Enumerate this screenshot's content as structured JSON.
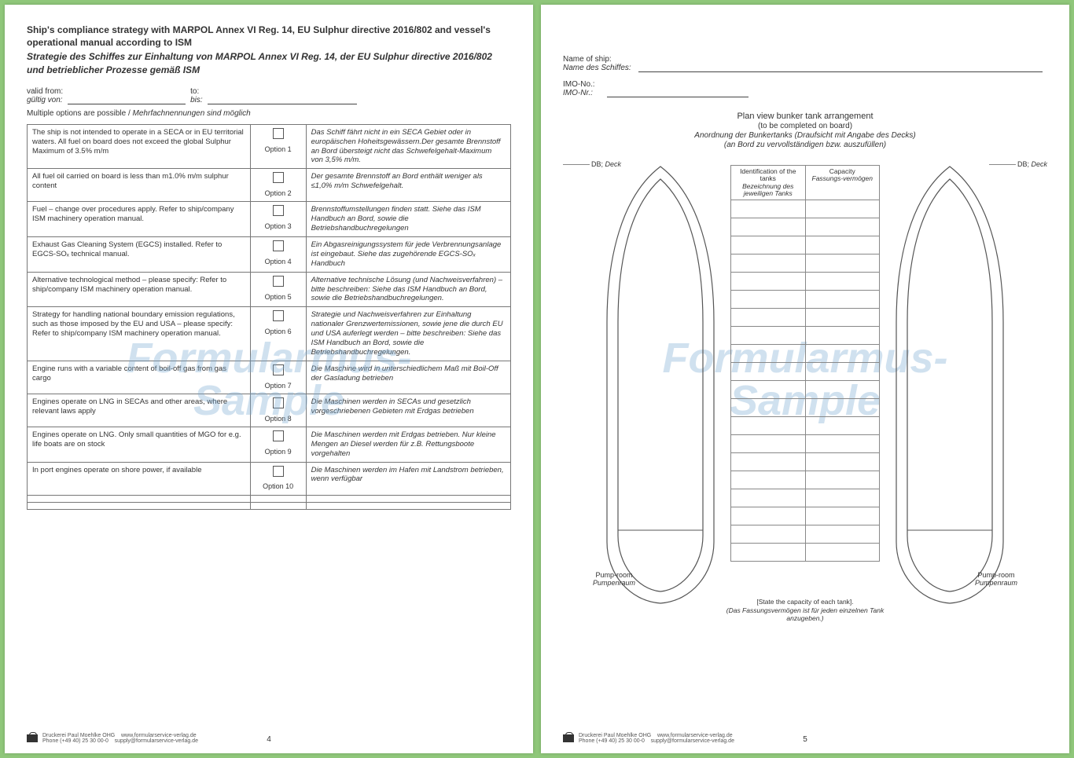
{
  "watermark": {
    "line1": "Formularmus-",
    "line2": "Sample"
  },
  "page_left": {
    "title_en": "Ship's compliance strategy with MARPOL Annex VI Reg. 14, EU Sulphur directive 2016/802 and vessel's operational manual according to ISM",
    "title_de": "Strategie des Schiffes zur Einhaltung von MARPOL Annex VI Reg. 14, der EU Sulphur directive 2016/802 und betrieblicher Prozesse gemäß ISM",
    "valid_from_en": "valid from:",
    "valid_from_de": "gültig von:",
    "to_en": "to:",
    "to_de": "bis:",
    "note_en": "Multiple options are possible",
    "note_sep": " / ",
    "note_de": "Mehrfachnennungen sind möglich",
    "options": [
      {
        "en": "The ship is not intended to operate in a SECA or in EU territorial waters. All fuel on board does not exceed the global Sulphur Maximum of 3.5% m/m",
        "label": "Option 1",
        "de": "Das Schiff fährt nicht in ein SECA Gebiet oder in europäischen Hoheitsgewässern.Der gesamte Brennstoff an Bord übersteigt nicht das Schwefelgehalt-Maximum von 3,5% m/m."
      },
      {
        "en": "All fuel oil carried on board is less than m1.0% m/m sulphur content",
        "label": "Option 2",
        "de": "Der gesamte Brennstoff an Bord enthält weniger als ≤1,0% m/m Schwefelgehalt."
      },
      {
        "en": "Fuel – change over procedures apply. Refer to ship/company ISM machinery operation manual.",
        "label": "Option 3",
        "de": "Brennstoffumstellungen finden statt. Siehe das ISM Handbuch an Bord, sowie die Betriebshandbuchregelungen"
      },
      {
        "en": "Exhaust Gas Cleaning System (EGCS) installed. Refer to EGCS-SOₓ technical manual.",
        "label": "Option 4",
        "de": "Ein Abgasreinigungssystem für jede Verbrennungsanlage ist eingebaut. Siehe das zugehörende EGCS-SOₓ Handbuch"
      },
      {
        "en": "Alternative technological method – please specify: Refer to ship/company ISM machinery operation manual.",
        "label": "Option 5",
        "de": "Alternative technische Lösung (und Nachweisverfahren) – bitte beschreiben: Siehe das ISM Handbuch an Bord, sowie die Betriebshandbuchregelungen."
      },
      {
        "en": "Strategy for handling national boundary emission regulations, such as those imposed by the EU and USA – please specify: Refer to ship/company ISM machinery operation manual.",
        "label": "Option 6",
        "de": "Strategie und Nachweisverfahren zur Einhaltung nationaler Grenzwertemissionen, sowie jene die durch EU und USA auferlegt werden – bitte beschreiben: Siehe das ISM Handbuch an Bord, sowie die Betriebshandbuchregelungen."
      },
      {
        "en": "Engine runs with a variable content of boil-off gas from gas cargo",
        "label": "Option 7",
        "de": "Die Maschine wird in unterschiedlichem Maß mit Boil-Off der Gasladung betrieben"
      },
      {
        "en": "Engines operate on LNG in SECAs and other areas, where relevant laws apply",
        "label": "Option 8",
        "de": "Die Maschinen werden in SECAs und gesetzlich vorgeschriebenen Gebieten mit Erdgas betrieben"
      },
      {
        "en": "Engines operate on LNG. Only small quantities of MGO for e.g. life boats are on stock",
        "label": "Option 9",
        "de": "Die Maschinen werden mit Erdgas betrieben. Nur kleine Mengen an Diesel werden für z.B. Rettungsboote vorgehalten"
      },
      {
        "en": "In port engines operate on shore power, if available",
        "label": "Option 10",
        "de": "Die Maschinen werden im Hafen mit Landstrom betrieben, wenn verfügbar"
      },
      {
        "en": "",
        "label": "",
        "de": ""
      },
      {
        "en": "",
        "label": "",
        "de": ""
      }
    ],
    "footer": {
      "publisher": "Druckerei Paul Moehlke OHG",
      "phone": "Phone  (+49 40) 25 30 00-0",
      "web": "www.formularservice-verlag.de",
      "email": "supply@formularservice-verlag.de"
    },
    "page_num": "4"
  },
  "page_right": {
    "ship_en": "Name of ship:",
    "ship_de": "Name des Schiffes:",
    "imo_en": "IMO-No.:",
    "imo_de": "IMO-Nr.:",
    "h1_en": "Plan view bunker tank arrangement",
    "h1_sub": "(to be completed on board)",
    "h1_de": "Anordnung der Bunkertanks (Draufsicht mit Angabe des Decks)",
    "h1_de_sub": "(an Bord zu vervollständigen bzw. auszufüllen)",
    "db_en": "DB;",
    "db_de": "Deck",
    "col1_en": "Identification of the tanks",
    "col1_de": "Bezeichnung des jeweiligen Tanks",
    "col2_en": "Capacity",
    "col2_de": "Fassungs-vermögen",
    "tank_rows": 20,
    "pump_en": "Pump-room",
    "pump_de": "Pumpenraum",
    "tnote_en": "[State the capacity of each tank].",
    "tnote_de": "(Das Fassungsvermögen ist für jeden einzelnen Tank anzugeben.)",
    "footer": {
      "publisher": "Druckerei Paul Moehlke OHG",
      "phone": "Phone  (+49 40) 25 30 00-0",
      "web": "www.formularservice-verlag.de",
      "email": "supply@formularservice-verlag.de"
    },
    "page_num": "5"
  },
  "colors": {
    "bg": "#8fc77a",
    "paper": "#ffffff",
    "line": "#777",
    "wm": "rgba(120,170,210,.35)"
  }
}
